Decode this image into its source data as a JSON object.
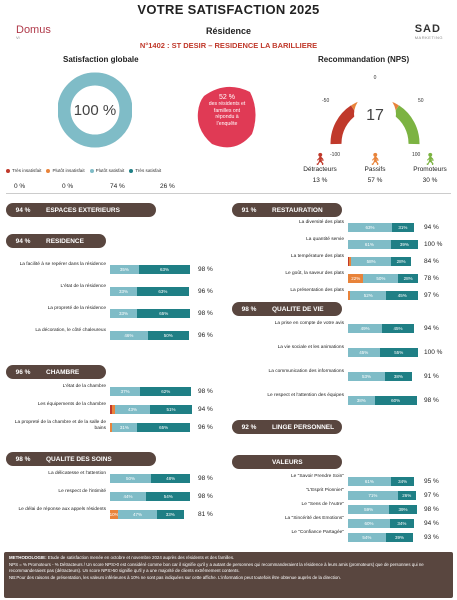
{
  "header": {
    "title": "VOTRE SATISFACTION 2025",
    "logo_left": "Domus",
    "logo_left_sub": "Vi",
    "residence_label": "Résidence",
    "residence_name": "N°1402 : ST DESIR – RESIDENCE LA BARILLIERE",
    "logo_right": "SAD",
    "logo_right_sub": "MARKETING"
  },
  "satisfaction": {
    "title": "Satisfaction globale",
    "value": "100 %",
    "fill": 1.0,
    "legend": [
      {
        "label": "Très insatisfait",
        "color": "#c0392b"
      },
      {
        "label": "Plutôt insatisfait",
        "color": "#e8833a"
      },
      {
        "label": "Plutôt satisfait",
        "color": "#7fbcc7"
      },
      {
        "label": "Très satisfait",
        "color": "#1f7f85"
      }
    ],
    "percents": [
      "0 %",
      "0 %",
      "74 %",
      "26 %"
    ]
  },
  "response": {
    "line1": "52 %",
    "line2": "des résidents et",
    "line3": "familles ont",
    "line4": "répondu à",
    "line5": "l'enquête"
  },
  "nps": {
    "title": "Recommandation (NPS)",
    "value": "17",
    "gauge": 17,
    "min": "-100",
    "max": "100",
    "m50": "-50",
    "p50": "50",
    "zero": "0",
    "groups": [
      {
        "label": "Détracteurs",
        "pct": "13 %"
      },
      {
        "label": "Passifs",
        "pct": "57 %"
      },
      {
        "label": "Promoteurs",
        "pct": "30 %"
      }
    ]
  },
  "colors": {
    "red": "#c0392b",
    "orange": "#e8833a",
    "light": "#7fbcc7",
    "teal": "#1f7f85",
    "brown": "#59463f",
    "pink": "#e03a55"
  },
  "left_sections": [
    {
      "pct": "94 %",
      "name": "ESPACES EXTERIEURS",
      "items": []
    },
    {
      "pct": "94 %",
      "name": "RESIDENCE",
      "items": [
        {
          "label": "La facilité à se repérer dans la résidence",
          "segs": [
            0,
            0,
            35,
            63
          ],
          "total": "98 %"
        },
        {
          "label": "L'état de la résidence",
          "segs": [
            0,
            0,
            33,
            63
          ],
          "total": "96 %"
        },
        {
          "label": "La propreté de la résidence",
          "segs": [
            0,
            0,
            33,
            65
          ],
          "total": "98 %"
        },
        {
          "label": "La décoration, le côté chaleureux",
          "segs": [
            0,
            0,
            46,
            50
          ],
          "total": "96 %"
        }
      ]
    },
    {
      "pct": "96 %",
      "name": "CHAMBRE",
      "items": [
        {
          "label": "L'état de la chambre",
          "segs": [
            0,
            0,
            37,
            62
          ],
          "total": "98 %"
        },
        {
          "label": "Les équipements de la chambre",
          "segs": [
            2,
            4,
            43,
            51
          ],
          "total": "94 %"
        },
        {
          "label": "La propreté de la chambre et de la salle de bains",
          "segs": [
            0,
            2,
            31,
            65
          ],
          "total": "96 %"
        }
      ]
    },
    {
      "pct": "98 %",
      "name": "QUALITE DES SOINS",
      "items": [
        {
          "label": "La délicatesse et l'attention",
          "segs": [
            0,
            0,
            50,
            48
          ],
          "total": "98 %"
        },
        {
          "label": "Le respect de l'intimité",
          "segs": [
            0,
            0,
            44,
            54
          ],
          "total": "98 %"
        },
        {
          "label": "Le délai de réponse aux appels résidents",
          "segs": [
            0,
            10,
            47,
            33
          ],
          "total": "81 %"
        }
      ]
    }
  ],
  "right_sections": [
    {
      "pct": "91 %",
      "name": "RESTAURATION",
      "items": [
        {
          "label": "La diversité des plats",
          "segs": [
            0,
            0,
            63,
            31
          ],
          "total": "94 %"
        },
        {
          "label": "La quantité servie",
          "segs": [
            0,
            0,
            61,
            39
          ],
          "total": "100 %"
        },
        {
          "label": "La température des plats",
          "segs": [
            2,
            2,
            58,
            28
          ],
          "total": "84 %"
        },
        {
          "label": "Le goût, la saveur des plats",
          "segs": [
            0,
            22,
            50,
            28
          ],
          "total": "78 %"
        },
        {
          "label": "La présentation des plats",
          "segs": [
            0,
            3,
            52,
            45
          ],
          "total": "97 %"
        }
      ]
    },
    {
      "pct": "98 %",
      "name": "QUALITE DE VIE",
      "items": [
        {
          "label": "La prise en compte de votre avis",
          "segs": [
            0,
            0,
            49,
            45
          ],
          "total": "94 %"
        },
        {
          "label": "La vie sociale et les animations",
          "segs": [
            0,
            0,
            45,
            55
          ],
          "total": "100 %"
        },
        {
          "label": "La communication des informations",
          "segs": [
            0,
            0,
            53,
            38
          ],
          "total": "91 %"
        },
        {
          "label": "Le respect et l'attention des équipes",
          "segs": [
            0,
            0,
            38,
            60
          ],
          "total": "98 %"
        }
      ]
    },
    {
      "pct": "92 %",
      "name": "LINGE PERSONNEL",
      "items": []
    },
    {
      "pct": "",
      "name": "VALEURS",
      "items": [
        {
          "label": "Le \"Savoir Prendre Soin\"",
          "segs": [
            0,
            0,
            61,
            34
          ],
          "total": "95 %"
        },
        {
          "label": "\"L'Esprit Pionnier\"",
          "segs": [
            0,
            0,
            71,
            26
          ],
          "total": "97 %"
        },
        {
          "label": "Le \"Sens de l'Autre\"",
          "segs": [
            0,
            0,
            59,
            39
          ],
          "total": "98 %"
        },
        {
          "label": "La \"Sincérité des Emotions\"",
          "segs": [
            0,
            0,
            60,
            34
          ],
          "total": "94 %"
        },
        {
          "label": "Le \"Confiance Partagée\"",
          "segs": [
            0,
            0,
            54,
            39
          ],
          "total": "93 %"
        }
      ]
    }
  ],
  "footer": {
    "l1b": "METHODOLOGIE:",
    "l1": " Etude de satisfaction menée en octobre et novembre 2024 auprès des résidents et des familles.",
    "l2": "NPS = % Promoteurs - % Détracteurs / Un score NPS>0 est considéré comme bon car il signifie qu'il y a autant de personnes qui recommanderaient la résidence à leurs amis (promoteurs) que de personnes qui ne recommanderaient pas (détracteurs). Un score NPS>50 signifie qu'il y a une majorité de clients extrêmement contents.",
    "l3": "NB:Pour des raisons de présentation, les valeurs inférieures à 10% ne sont pas indiquées sur cette affiche. L'information peut toutefois être obtenue auprès de la direction."
  }
}
